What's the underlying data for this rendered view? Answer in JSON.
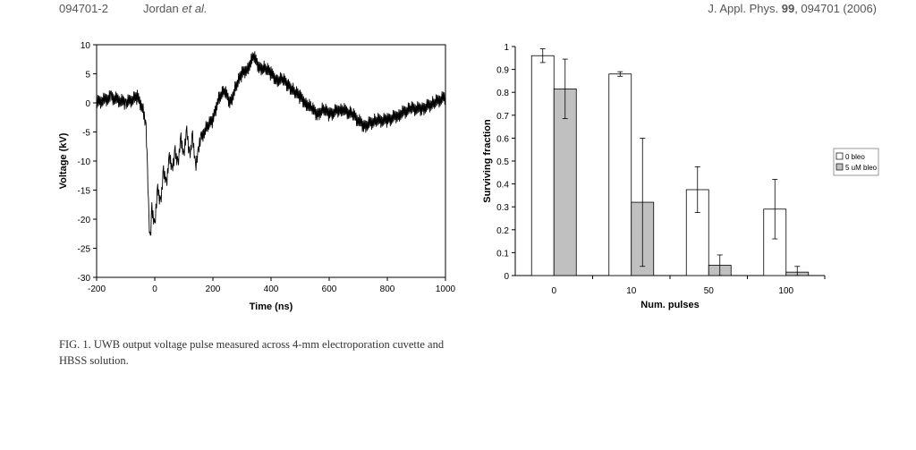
{
  "header": {
    "page_id": "094701-2",
    "author": "Jordan",
    "etal": "et al.",
    "journal_prefix": "J. Appl. Phys.",
    "volume": "99",
    "journal_suffix": ", 094701 (2006)"
  },
  "figure_caption": "FIG. 1. UWB output voltage pulse measured across 4-mm electroporation cuvette and HBSS solution.",
  "chart_data": [
    {
      "type": "line",
      "xlabel": "Time (ns)",
      "ylabel": "Voltage (kV)",
      "xlim": [
        -200,
        1000
      ],
      "ylim": [
        -30,
        10
      ],
      "xticks": [
        "-200",
        "0",
        "200",
        "400",
        "600",
        "800",
        "1000"
      ],
      "yticks": [
        "10",
        "5",
        "0",
        "-5",
        "-10",
        "-15",
        "-20",
        "-25",
        "-30"
      ],
      "grid": false,
      "series": [
        {
          "color": "#000000",
          "x": [
            -200,
            -150,
            -100,
            -60,
            -40,
            -30,
            -25,
            -20,
            -15,
            -10,
            0,
            10,
            20,
            30,
            40,
            50,
            60,
            70,
            80,
            90,
            100,
            110,
            120,
            130,
            140,
            150,
            160,
            180,
            200,
            220,
            240,
            260,
            280,
            300,
            320,
            340,
            360,
            380,
            400,
            420,
            440,
            460,
            480,
            500,
            520,
            540,
            560,
            580,
            600,
            640,
            680,
            720,
            760,
            800,
            840,
            880,
            920,
            960,
            1000
          ],
          "y": [
            0,
            1,
            0,
            1,
            -1,
            -4,
            -12,
            -20,
            -24,
            -18,
            -21,
            -15,
            -17,
            -12,
            -14,
            -9,
            -12,
            -8,
            -11,
            -6,
            -9,
            -5,
            -9,
            -6,
            -11,
            -8,
            -6,
            -4,
            -3,
            1,
            2,
            0,
            3,
            5,
            6,
            8,
            6,
            6,
            5,
            4,
            4,
            3,
            2,
            1,
            0,
            -1,
            -2,
            -1,
            -2,
            -1,
            -2,
            -4,
            -3,
            -3,
            -2,
            -1,
            -1,
            0,
            1
          ]
        }
      ]
    },
    {
      "type": "bar",
      "xlabel": "Num. pulses",
      "ylabel": "Surviving fraction",
      "categories": [
        "0",
        "10",
        "50",
        "100"
      ],
      "ylim": [
        0,
        1
      ],
      "yticks": [
        "0",
        "0.1",
        "0.2",
        "0.3",
        "0.4",
        "0.5",
        "0.6",
        "0.7",
        "0.8",
        "0.9",
        "1"
      ],
      "legend_position": "right",
      "grid": false,
      "series": [
        {
          "name": "0 bleo",
          "color": "#ffffff",
          "values": [
            0.96,
            0.88,
            0.375,
            0.29
          ],
          "errors": [
            0.03,
            0.01,
            0.1,
            0.13
          ]
        },
        {
          "name": "5 uM bleo",
          "color": "#c0c0c0",
          "values": [
            0.815,
            0.32,
            0.045,
            0.015
          ],
          "errors": [
            0.13,
            0.28,
            0.045,
            0.025
          ]
        }
      ]
    }
  ]
}
